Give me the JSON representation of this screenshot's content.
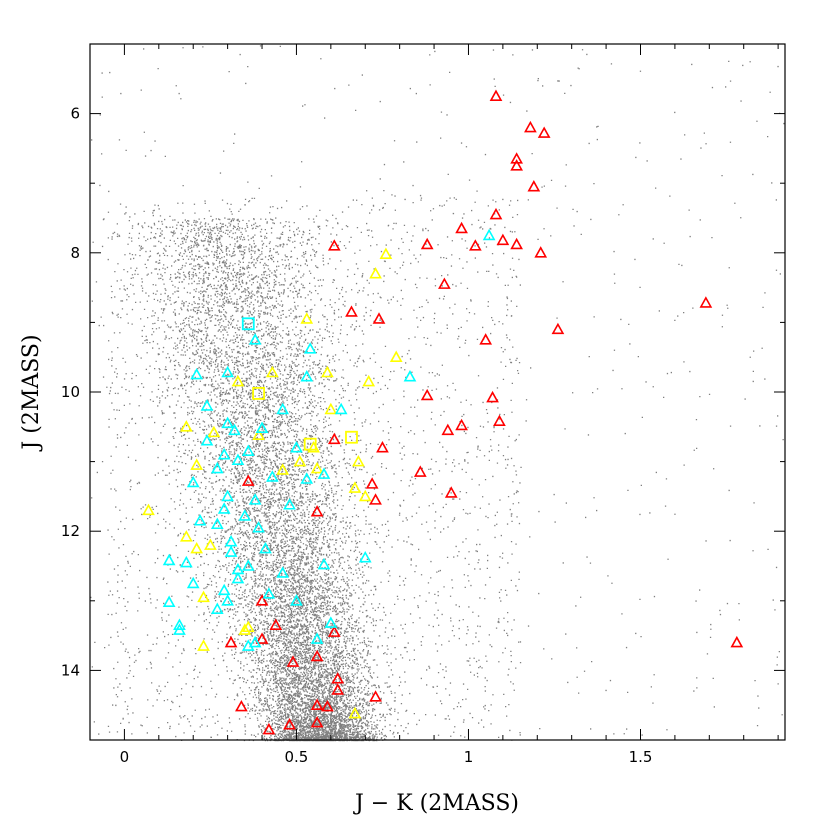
{
  "chart_data": {
    "type": "scatter",
    "title": "",
    "xlabel": "J − K (2MASS)",
    "ylabel": "J (2MASS)",
    "xlim": [
      -0.1,
      1.92
    ],
    "ylim": [
      15.0,
      5.0
    ],
    "y_inverted": true,
    "grid": false,
    "x_ticks": [
      0,
      0.5,
      1,
      1.5
    ],
    "x_tick_labels": [
      "0",
      "0.5",
      "1",
      "1.5"
    ],
    "y_ticks": [
      6,
      8,
      10,
      12,
      14
    ],
    "y_tick_labels": [
      "6",
      "8",
      "10",
      "12",
      "14"
    ],
    "background_field": {
      "description": "dense cloud of gray field-star points",
      "color": "#808080",
      "density_core": {
        "x_range": [
          0.05,
          0.95
        ],
        "y_range": [
          7.5,
          15.0
        ]
      },
      "densest_region": {
        "x_center": 0.5,
        "y_center": 14.0
      }
    },
    "series": [
      {
        "marker": "triangle",
        "color": "#ff0000",
        "points": [
          [
            1.08,
            5.75
          ],
          [
            1.18,
            6.2
          ],
          [
            1.22,
            6.28
          ],
          [
            1.14,
            6.65
          ],
          [
            1.14,
            6.75
          ],
          [
            1.19,
            7.05
          ],
          [
            1.08,
            7.45
          ],
          [
            0.98,
            7.65
          ],
          [
            1.02,
            7.9
          ],
          [
            1.1,
            7.82
          ],
          [
            1.14,
            7.88
          ],
          [
            1.21,
            8.0
          ],
          [
            0.88,
            7.88
          ],
          [
            0.61,
            7.9
          ],
          [
            0.93,
            8.45
          ],
          [
            1.69,
            8.72
          ],
          [
            0.66,
            8.85
          ],
          [
            0.74,
            8.95
          ],
          [
            1.26,
            9.1
          ],
          [
            1.05,
            9.25
          ],
          [
            0.88,
            10.05
          ],
          [
            1.07,
            10.08
          ],
          [
            1.09,
            10.42
          ],
          [
            0.98,
            10.48
          ],
          [
            0.94,
            10.55
          ],
          [
            0.61,
            10.68
          ],
          [
            0.75,
            10.8
          ],
          [
            0.86,
            11.15
          ],
          [
            0.95,
            11.45
          ],
          [
            0.72,
            11.32
          ],
          [
            0.73,
            11.55
          ],
          [
            0.56,
            11.72
          ],
          [
            0.36,
            11.28
          ],
          [
            0.31,
            13.6
          ],
          [
            0.4,
            13.0
          ],
          [
            0.44,
            13.35
          ],
          [
            0.4,
            13.55
          ],
          [
            0.56,
            13.8
          ],
          [
            0.61,
            13.45
          ],
          [
            0.49,
            13.88
          ],
          [
            0.62,
            14.12
          ],
          [
            0.62,
            14.28
          ],
          [
            0.56,
            14.5
          ],
          [
            0.59,
            14.52
          ],
          [
            0.34,
            14.52
          ],
          [
            0.42,
            14.85
          ],
          [
            0.48,
            14.78
          ],
          [
            0.56,
            14.75
          ],
          [
            0.73,
            14.38
          ],
          [
            1.78,
            13.6
          ]
        ]
      },
      {
        "marker": "triangle",
        "color": "#ffff00",
        "points": [
          [
            0.76,
            8.02
          ],
          [
            0.73,
            8.3
          ],
          [
            0.53,
            8.95
          ],
          [
            0.79,
            9.5
          ],
          [
            0.43,
            9.72
          ],
          [
            0.59,
            9.72
          ],
          [
            0.33,
            9.85
          ],
          [
            0.71,
            9.85
          ],
          [
            0.6,
            10.25
          ],
          [
            0.18,
            10.5
          ],
          [
            0.26,
            10.58
          ],
          [
            0.39,
            10.62
          ],
          [
            0.55,
            10.8
          ],
          [
            0.68,
            11.0
          ],
          [
            0.51,
            11.0
          ],
          [
            0.21,
            11.05
          ],
          [
            0.46,
            11.12
          ],
          [
            0.56,
            11.1
          ],
          [
            0.67,
            11.38
          ],
          [
            0.7,
            11.5
          ],
          [
            0.07,
            11.7
          ],
          [
            0.18,
            12.08
          ],
          [
            0.21,
            12.25
          ],
          [
            0.25,
            12.2
          ],
          [
            0.23,
            12.95
          ],
          [
            0.36,
            13.38
          ],
          [
            0.35,
            13.42
          ],
          [
            0.23,
            13.65
          ],
          [
            0.67,
            14.62
          ]
        ]
      },
      {
        "marker": "triangle",
        "color": "#00ffff",
        "points": [
          [
            1.06,
            7.75
          ],
          [
            0.38,
            9.25
          ],
          [
            0.54,
            9.38
          ],
          [
            0.21,
            9.75
          ],
          [
            0.3,
            9.72
          ],
          [
            0.53,
            9.78
          ],
          [
            0.83,
            9.78
          ],
          [
            0.24,
            10.2
          ],
          [
            0.46,
            10.25
          ],
          [
            0.63,
            10.25
          ],
          [
            0.3,
            10.45
          ],
          [
            0.32,
            10.55
          ],
          [
            0.4,
            10.52
          ],
          [
            0.24,
            10.7
          ],
          [
            0.36,
            10.85
          ],
          [
            0.5,
            10.8
          ],
          [
            0.29,
            10.9
          ],
          [
            0.33,
            10.98
          ],
          [
            0.2,
            11.3
          ],
          [
            0.27,
            11.1
          ],
          [
            0.43,
            11.22
          ],
          [
            0.53,
            11.25
          ],
          [
            0.58,
            11.18
          ],
          [
            0.3,
            11.5
          ],
          [
            0.38,
            11.55
          ],
          [
            0.29,
            11.68
          ],
          [
            0.35,
            11.78
          ],
          [
            0.48,
            11.62
          ],
          [
            0.22,
            11.85
          ],
          [
            0.27,
            11.9
          ],
          [
            0.39,
            11.95
          ],
          [
            0.13,
            12.42
          ],
          [
            0.31,
            12.15
          ],
          [
            0.41,
            12.25
          ],
          [
            0.58,
            12.48
          ],
          [
            0.18,
            12.45
          ],
          [
            0.31,
            12.3
          ],
          [
            0.33,
            12.55
          ],
          [
            0.36,
            12.5
          ],
          [
            0.7,
            12.38
          ],
          [
            0.46,
            12.6
          ],
          [
            0.2,
            12.75
          ],
          [
            0.33,
            12.68
          ],
          [
            0.29,
            12.85
          ],
          [
            0.42,
            12.9
          ],
          [
            0.5,
            13.0
          ],
          [
            0.13,
            13.02
          ],
          [
            0.3,
            13.0
          ],
          [
            0.27,
            13.12
          ],
          [
            0.6,
            13.32
          ],
          [
            0.16,
            13.35
          ],
          [
            0.16,
            13.42
          ],
          [
            0.56,
            13.55
          ],
          [
            0.38,
            13.6
          ],
          [
            0.36,
            13.65
          ]
        ]
      },
      {
        "marker": "square",
        "color": "#00ffff",
        "points": [
          [
            0.36,
            9.02
          ]
        ]
      },
      {
        "marker": "square",
        "color": "#ffff00",
        "points": [
          [
            0.39,
            10.02
          ],
          [
            0.54,
            10.75
          ],
          [
            0.66,
            10.65
          ]
        ]
      }
    ]
  }
}
